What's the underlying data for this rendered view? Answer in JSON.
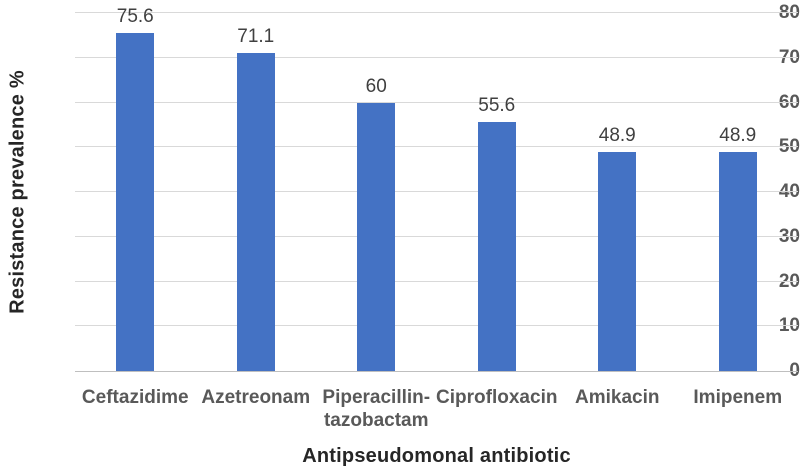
{
  "chart_data": {
    "type": "bar",
    "categories": [
      "Ceftazidime",
      "Azetreonam",
      "Piperacillin-\ntazobactam",
      "Ciprofloxacin",
      "Amikacin",
      "Imipenem"
    ],
    "values": [
      75.6,
      71.1,
      60,
      55.6,
      48.9,
      48.9
    ],
    "data_labels": [
      "75.6",
      "71.1",
      "60",
      "55.6",
      "48.9",
      "48.9"
    ],
    "title": "",
    "xlabel": "Antipseudomonal antibiotic",
    "ylabel": "Resistance prevalence %",
    "ylim": [
      0,
      80
    ],
    "yticks": [
      0,
      10,
      20,
      30,
      40,
      50,
      60,
      70,
      80
    ],
    "grid": "horizontal",
    "legend_position": "none",
    "colors": {
      "bar_fill": "#4472C4",
      "gridline": "#D9D9D9",
      "axis_line": "#BFBFBF",
      "tick_label": "#595959",
      "category_label": "#595959",
      "data_label": "#404040",
      "axis_title": "#262626"
    }
  }
}
